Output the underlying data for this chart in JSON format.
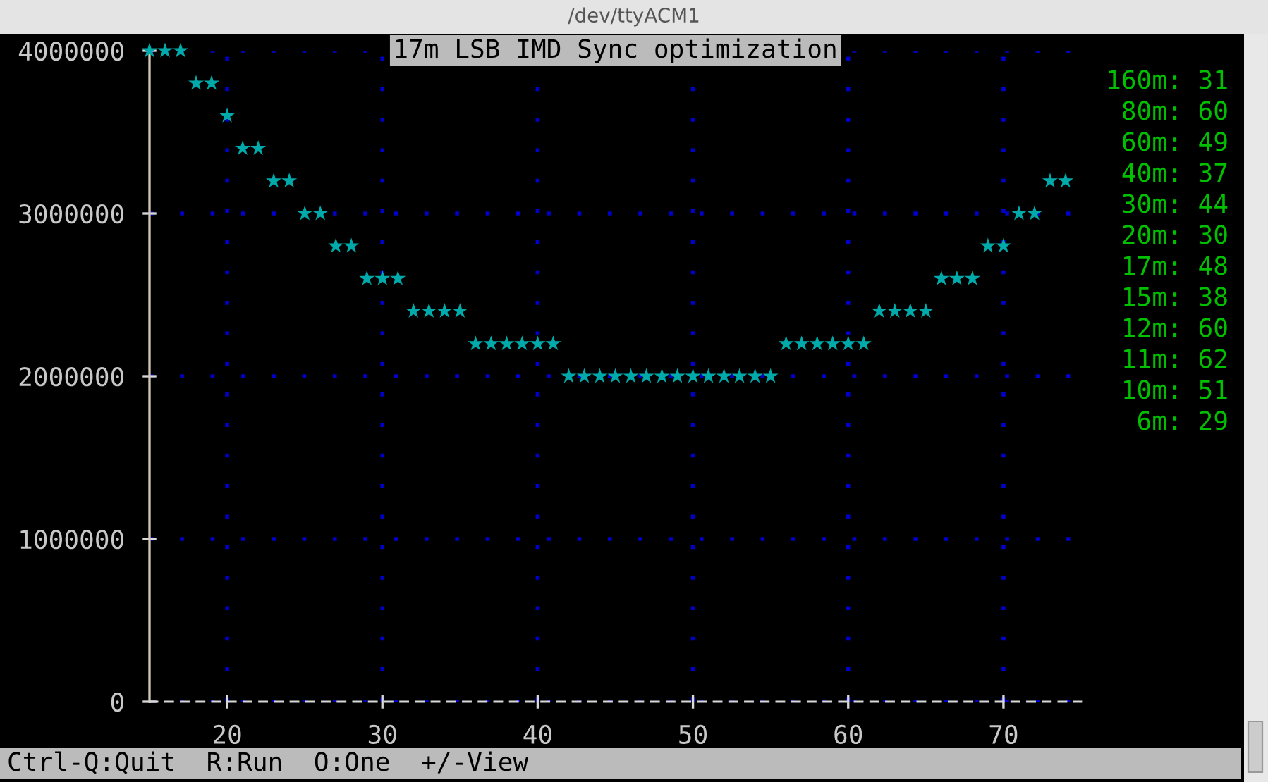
{
  "chart_data": {
    "type": "scatter",
    "title": "17m LSB IMD Sync optimization",
    "x": [
      15,
      16,
      17,
      18,
      19,
      20,
      21,
      22,
      23,
      24,
      25,
      26,
      27,
      28,
      29,
      30,
      31,
      32,
      33,
      34,
      35,
      36,
      37,
      38,
      39,
      40,
      41,
      42,
      43,
      44,
      45,
      46,
      47,
      48,
      49,
      50,
      51,
      52,
      53,
      54,
      55,
      56,
      57,
      58,
      59,
      60,
      61,
      62,
      63,
      64,
      65,
      66,
      67,
      68,
      69,
      70,
      71,
      72,
      73,
      74
    ],
    "values": [
      4000000,
      4000000,
      4000000,
      3800000,
      3800000,
      3600000,
      3400000,
      3400000,
      3200000,
      3200000,
      3000000,
      3000000,
      2800000,
      2800000,
      2600000,
      2600000,
      2600000,
      2400000,
      2400000,
      2400000,
      2400000,
      2200000,
      2200000,
      2200000,
      2200000,
      2200000,
      2200000,
      2000000,
      2000000,
      2000000,
      2000000,
      2000000,
      2000000,
      2000000,
      2000000,
      2000000,
      2000000,
      2000000,
      2000000,
      2000000,
      2000000,
      2200000,
      2200000,
      2200000,
      2200000,
      2200000,
      2200000,
      2400000,
      2400000,
      2400000,
      2400000,
      2600000,
      2600000,
      2600000,
      2800000,
      2800000,
      3000000,
      3000000,
      3200000,
      3200000
    ],
    "color": "#00aaaa",
    "marker": "star",
    "xlim": [
      15,
      75
    ],
    "xticks": [
      20,
      30,
      40,
      50,
      60,
      70
    ],
    "ylim": [
      0,
      4000000
    ],
    "yticks": [
      0,
      1000000,
      2000000,
      3000000,
      4000000
    ],
    "grid": true,
    "annotations": [
      "/dev/ttyACM1",
      "160m: 31",
      "80m: 60",
      "60m: 49",
      "40m: 37",
      "30m: 44",
      "20m: 30",
      "17m: 48",
      "15m: 38",
      "12m: 60",
      "11m: 62",
      "10m: 51",
      "6m: 29",
      "Ctrl-Q:Quit  R:Run  O:One  +/-View"
    ]
  }
}
